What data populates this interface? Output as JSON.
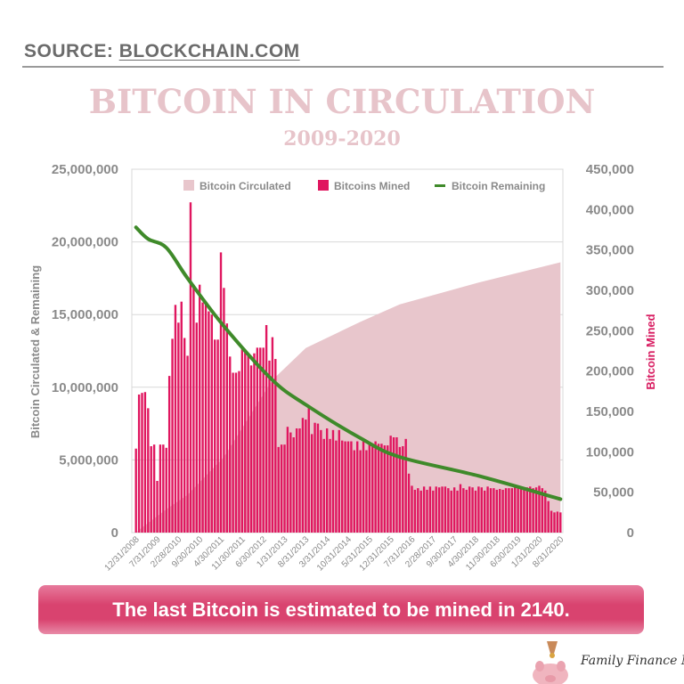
{
  "header": {
    "source_label": "SOURCE:",
    "source_link": "BLOCKCHAIN.COM",
    "title": "BITCOIN IN CIRCULATION",
    "subtitle": "2009-2020"
  },
  "banner": {
    "text": "The last Bitcoin is estimated to be mined in 2140."
  },
  "logo": {
    "text": "Family Finance Mom",
    "icon": "piggy-bank-coin-icon"
  },
  "colors": {
    "circulated": "#e8c6cc",
    "mined": "#e0165f",
    "remaining": "#3f8a2a",
    "title": "#e7c4ca",
    "axis_text": "#8a8a8a"
  },
  "chart_data": {
    "type": "bar+area+line",
    "title": "BITCOIN IN CIRCULATION",
    "subtitle": "2009-2020",
    "ylabel_left": "Bitcoin Circulated & Remaining",
    "ylabel_right": "Bitcoin Mined",
    "ylim_left": [
      0,
      25000000
    ],
    "ylim_right": [
      0,
      450000
    ],
    "left_ticks": [
      "0",
      "5,000,000",
      "10,000,000",
      "15,000,000",
      "20,000,000",
      "25,000,000"
    ],
    "right_ticks": [
      "0",
      "50,000",
      "100,000",
      "150,000",
      "200,000",
      "250,000",
      "300,000",
      "350,000",
      "400,000",
      "450,000"
    ],
    "x_tick_labels": [
      "12/31/2008",
      "7/31/2009",
      "2/28/2010",
      "9/30/2010",
      "4/30/2011",
      "11/30/2011",
      "6/30/2012",
      "1/31/2013",
      "8/31/2013",
      "3/31/2014",
      "10/31/2014",
      "5/31/2015",
      "12/31/2015",
      "7/31/2016",
      "2/28/2017",
      "9/30/2017",
      "4/30/2018",
      "11/30/2018",
      "6/30/2019",
      "1/31/2020",
      "8/31/2020"
    ],
    "x_range": [
      "12/31/2008",
      "8/31/2020"
    ],
    "x_interval": "monthly",
    "grid": true,
    "legend": {
      "position": "top",
      "entries": [
        "Bitcoin Circulated",
        "Bitcoins Mined",
        "Bitcoin Remaining"
      ]
    },
    "series": [
      {
        "name": "Bitcoins Mined",
        "type": "bar",
        "axis": "right",
        "values_thousands": [
          104,
          171,
          173,
          174,
          154,
          107,
          109,
          64,
          109,
          109,
          105,
          194,
          240,
          282,
          260,
          286,
          241,
          219,
          409,
          307,
          260,
          307,
          285,
          285,
          274,
          270,
          239,
          239,
          347,
          303,
          259,
          218,
          198,
          198,
          200,
          227,
          226,
          222,
          207,
          222,
          229,
          229,
          229,
          257,
          213,
          242,
          215,
          106,
          109,
          109,
          131,
          124,
          118,
          129,
          129,
          142,
          140,
          157,
          122,
          136,
          135,
          127,
          116,
          129,
          116,
          127,
          114,
          127,
          114,
          113,
          113,
          113,
          102,
          113,
          102,
          113,
          102,
          110,
          110,
          113,
          110,
          110,
          108,
          108,
          120,
          118,
          118,
          106,
          107,
          116,
          73,
          58,
          53,
          55,
          52,
          57,
          53,
          57,
          52,
          57,
          56,
          57,
          57,
          55,
          52,
          56,
          52,
          60,
          55,
          53,
          57,
          56,
          52,
          57,
          56,
          52,
          57,
          55,
          55,
          53,
          54,
          53,
          55,
          55,
          55,
          56,
          55,
          57,
          55,
          56,
          57,
          55,
          56,
          58,
          55,
          52,
          39,
          27,
          25,
          26,
          25
        ]
      },
      {
        "name": "Bitcoin Circulated",
        "type": "area",
        "axis": "left",
        "points": [
          {
            "month_index": 0,
            "date": "12/31/2008",
            "value_millions": 0.03
          },
          {
            "month_index": 10,
            "value_millions": 1.6
          },
          {
            "month_index": 17,
            "value_millions": 2.6
          },
          {
            "month_index": 29,
            "value_millions": 5.2
          },
          {
            "month_index": 45,
            "value_millions": 10.5
          },
          {
            "month_index": 56,
            "value_millions": 12.7
          },
          {
            "month_index": 74,
            "value_millions": 14.5
          },
          {
            "month_index": 87,
            "value_millions": 15.7
          },
          {
            "month_index": 113,
            "value_millions": 17.2
          },
          {
            "month_index": 140,
            "date": "8/31/2020",
            "value_millions": 18.6
          }
        ]
      },
      {
        "name": "Bitcoin Remaining",
        "type": "line",
        "axis": "left",
        "points": [
          {
            "month_index": 0,
            "date": "12/31/2008",
            "value_millions": 21.0
          },
          {
            "month_index": 4,
            "value_millions": 20.2
          },
          {
            "month_index": 10,
            "value_millions": 19.6
          },
          {
            "month_index": 17,
            "value_millions": 17.5
          },
          {
            "month_index": 29,
            "value_millions": 14.2
          },
          {
            "month_index": 45,
            "value_millions": 10.5
          },
          {
            "month_index": 56,
            "value_millions": 8.8
          },
          {
            "month_index": 74,
            "value_millions": 6.5
          },
          {
            "month_index": 87,
            "value_millions": 5.2
          },
          {
            "month_index": 113,
            "value_millions": 3.9
          },
          {
            "month_index": 140,
            "date": "8/31/2020",
            "value_millions": 2.3
          }
        ]
      }
    ]
  }
}
